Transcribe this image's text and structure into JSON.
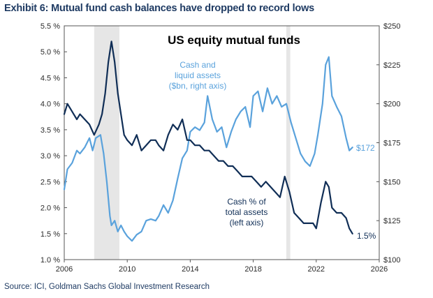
{
  "header": {
    "exhibit_title": "Exhibit 6: Mutual fund cash balances have dropped to record lows"
  },
  "footer": {
    "source": "Source: ICI, Goldman Sachs Global Investment Research"
  },
  "colors": {
    "cash_assets_series": "#5aa2dc",
    "cash_pct_series": "#102e56",
    "recession_shading": "#e6e6e6",
    "axis": "#555555"
  },
  "chart_data": {
    "type": "line",
    "title": "US equity mutual funds",
    "grid": false,
    "x_ticks": [
      "2006",
      "2010",
      "2014",
      "2018",
      "2022",
      "2026"
    ],
    "xlim": [
      2006,
      2026
    ],
    "left_axis": {
      "ylim": [
        1.0,
        5.5
      ],
      "ticks": [
        "1.0 %",
        "1.5 %",
        "2.0 %",
        "2.5 %",
        "3.0 %",
        "3.5 %",
        "4.0 %",
        "4.5 %",
        "5.0 %",
        "5.5 %"
      ]
    },
    "right_axis": {
      "ylim": [
        100,
        250
      ],
      "ticks": [
        "$100",
        "$125",
        "$150",
        "$175",
        "$200",
        "$225",
        "$250"
      ]
    },
    "shaded_periods": [
      {
        "start": 2007.9,
        "end": 2009.5
      },
      {
        "start": 2020.1,
        "end": 2020.35
      }
    ],
    "annotations": {
      "cash_assets_label": [
        "Cash and",
        "liquid assets",
        "($bn, right axis)"
      ],
      "cash_pct_label": [
        "Cash % of",
        "total assets",
        "(left axis)"
      ],
      "cash_assets_end_value": "$172",
      "cash_pct_end_value": "1.5%"
    },
    "series": [
      {
        "axis": "right",
        "x": [
          2006.0,
          2006.2,
          2006.5,
          2006.8,
          2007.0,
          2007.3,
          2007.6,
          2007.8,
          2008.0,
          2008.3,
          2008.5,
          2008.7,
          2008.9,
          2009.0,
          2009.2,
          2009.4,
          2009.6,
          2009.8,
          2010.0,
          2010.3,
          2010.6,
          2010.9,
          2011.2,
          2011.5,
          2011.8,
          2012.0,
          2012.3,
          2012.6,
          2012.9,
          2013.2,
          2013.5,
          2013.8,
          2014.0,
          2014.3,
          2014.6,
          2014.9,
          2015.1,
          2015.4,
          2015.7,
          2016.0,
          2016.3,
          2016.6,
          2016.9,
          2017.2,
          2017.5,
          2017.8,
          2018.0,
          2018.3,
          2018.6,
          2018.9,
          2019.2,
          2019.5,
          2019.8,
          2020.1,
          2020.4,
          2020.7,
          2021.0,
          2021.3,
          2021.6,
          2021.9,
          2022.1,
          2022.4,
          2022.6,
          2022.8,
          2023.0,
          2023.3,
          2023.6,
          2023.9,
          2024.1,
          2024.3
        ],
        "values": [
          145,
          158,
          162,
          170,
          168,
          172,
          178,
          170,
          178,
          180,
          168,
          150,
          128,
          122,
          125,
          118,
          122,
          118,
          115,
          112,
          116,
          118,
          125,
          126,
          125,
          128,
          135,
          130,
          138,
          152,
          165,
          170,
          182,
          185,
          183,
          188,
          205,
          190,
          182,
          185,
          172,
          182,
          190,
          195,
          198,
          185,
          205,
          208,
          195,
          210,
          200,
          205,
          198,
          200,
          188,
          178,
          168,
          163,
          160,
          168,
          180,
          200,
          225,
          230,
          205,
          198,
          192,
          178,
          170,
          172
        ]
      },
      {
        "axis": "left",
        "x": [
          2006.0,
          2006.2,
          2006.4,
          2006.6,
          2006.8,
          2007.0,
          2007.3,
          2007.6,
          2007.9,
          2008.2,
          2008.4,
          2008.6,
          2008.8,
          2009.0,
          2009.2,
          2009.4,
          2009.6,
          2009.8,
          2010.0,
          2010.3,
          2010.6,
          2010.9,
          2011.2,
          2011.5,
          2011.8,
          2012.0,
          2012.3,
          2012.6,
          2012.9,
          2013.2,
          2013.5,
          2013.8,
          2014.0,
          2014.3,
          2014.6,
          2014.9,
          2015.2,
          2015.5,
          2015.8,
          2016.1,
          2016.4,
          2016.7,
          2017.0,
          2017.3,
          2017.6,
          2017.9,
          2018.2,
          2018.5,
          2018.8,
          2019.1,
          2019.4,
          2019.7,
          2020.0,
          2020.3,
          2020.6,
          2020.9,
          2021.2,
          2021.5,
          2021.8,
          2022.0,
          2022.3,
          2022.6,
          2022.8,
          2023.0,
          2023.3,
          2023.6,
          2023.9,
          2024.1,
          2024.3
        ],
        "values": [
          3.8,
          4.0,
          3.9,
          3.8,
          3.7,
          3.8,
          3.7,
          3.6,
          3.4,
          3.6,
          3.8,
          4.2,
          4.8,
          5.2,
          4.8,
          4.2,
          3.8,
          3.4,
          3.3,
          3.2,
          3.4,
          3.1,
          3.2,
          3.3,
          3.3,
          3.2,
          3.1,
          3.4,
          3.6,
          3.5,
          3.7,
          3.3,
          3.3,
          3.2,
          3.2,
          3.1,
          3.1,
          3.0,
          2.9,
          2.9,
          2.8,
          2.8,
          2.7,
          2.6,
          2.6,
          2.6,
          2.5,
          2.4,
          2.5,
          2.4,
          2.3,
          2.2,
          2.6,
          2.3,
          1.9,
          1.8,
          1.7,
          1.7,
          1.7,
          1.6,
          2.1,
          2.5,
          2.4,
          2.0,
          1.9,
          1.9,
          1.8,
          1.6,
          1.5
        ]
      }
    ]
  }
}
